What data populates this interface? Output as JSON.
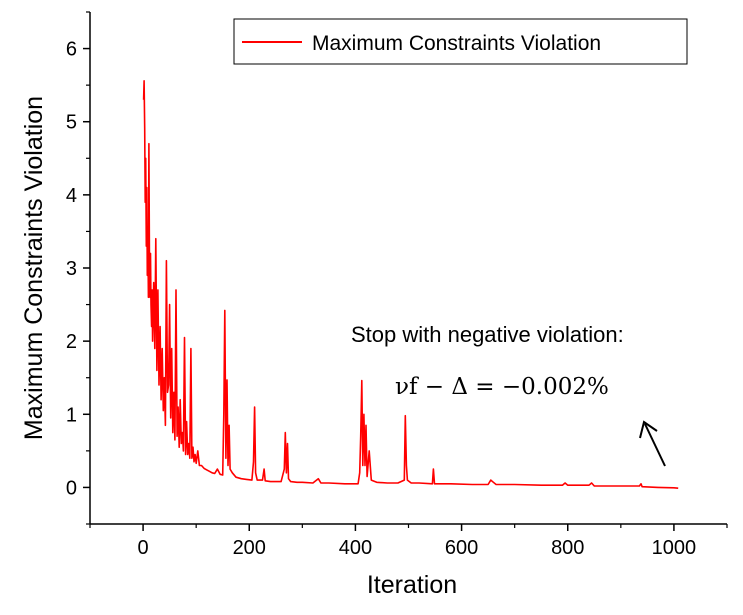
{
  "chart_data": {
    "type": "line",
    "title": "",
    "xlabel": "Iteration",
    "ylabel": "Maximum Constraints Violation",
    "xlim": [
      -100,
      1100
    ],
    "ylim": [
      -0.5,
      6.5
    ],
    "xticks": [
      0,
      200,
      400,
      600,
      800,
      1000
    ],
    "yticks": [
      0,
      1,
      2,
      3,
      4,
      5,
      6
    ],
    "grid": false,
    "legend_position": "top-right",
    "series": [
      {
        "name": "Maximum Constraints Violation",
        "color": "#ff0000",
        "points": [
          [
            1,
            5.3
          ],
          [
            2,
            5.56
          ],
          [
            3,
            4.9
          ],
          [
            4,
            3.9
          ],
          [
            5,
            4.5
          ],
          [
            6,
            3.3
          ],
          [
            7,
            4.1
          ],
          [
            8,
            2.9
          ],
          [
            9,
            3.4
          ],
          [
            10,
            2.6
          ],
          [
            11,
            4.7
          ],
          [
            12,
            3.0
          ],
          [
            13,
            2.6
          ],
          [
            14,
            3.2
          ],
          [
            15,
            2.5
          ],
          [
            16,
            2.2
          ],
          [
            17,
            2.7
          ],
          [
            18,
            2.0
          ],
          [
            20,
            2.8
          ],
          [
            22,
            1.9
          ],
          [
            24,
            3.4
          ],
          [
            26,
            1.6
          ],
          [
            28,
            2.7
          ],
          [
            30,
            1.4
          ],
          [
            32,
            2.2
          ],
          [
            34,
            1.2
          ],
          [
            36,
            1.9
          ],
          [
            38,
            1.05
          ],
          [
            40,
            1.5
          ],
          [
            42,
            0.85
          ],
          [
            44,
            3.1
          ],
          [
            46,
            1.3
          ],
          [
            48,
            1.4
          ],
          [
            50,
            2.5
          ],
          [
            52,
            0.95
          ],
          [
            54,
            1.9
          ],
          [
            56,
            0.75
          ],
          [
            58,
            1.3
          ],
          [
            60,
            0.65
          ],
          [
            62,
            2.7
          ],
          [
            64,
            0.7
          ],
          [
            66,
            1.1
          ],
          [
            68,
            0.55
          ],
          [
            70,
            1.2
          ],
          [
            72,
            0.6
          ],
          [
            74,
            0.75
          ],
          [
            76,
            0.5
          ],
          [
            78,
            2.05
          ],
          [
            80,
            0.45
          ],
          [
            82,
            0.9
          ],
          [
            84,
            0.45
          ],
          [
            86,
            0.6
          ],
          [
            88,
            0.4
          ],
          [
            90,
            1.9
          ],
          [
            92,
            0.4
          ],
          [
            94,
            0.55
          ],
          [
            96,
            0.35
          ],
          [
            98,
            0.45
          ],
          [
            100,
            0.33
          ],
          [
            103,
            0.5
          ],
          [
            106,
            0.3
          ],
          [
            110,
            0.3
          ],
          [
            115,
            0.26
          ],
          [
            120,
            0.24
          ],
          [
            125,
            0.22
          ],
          [
            130,
            0.2
          ],
          [
            135,
            0.19
          ],
          [
            140,
            0.25
          ],
          [
            145,
            0.18
          ],
          [
            150,
            0.17
          ],
          [
            152,
            1.0
          ],
          [
            154,
            2.42
          ],
          [
            156,
            0.4
          ],
          [
            158,
            1.47
          ],
          [
            160,
            0.3
          ],
          [
            162,
            0.85
          ],
          [
            164,
            0.25
          ],
          [
            168,
            0.2
          ],
          [
            175,
            0.14
          ],
          [
            185,
            0.12
          ],
          [
            195,
            0.11
          ],
          [
            205,
            0.1
          ],
          [
            208,
            0.35
          ],
          [
            210,
            1.1
          ],
          [
            212,
            0.2
          ],
          [
            215,
            0.1
          ],
          [
            225,
            0.1
          ],
          [
            228,
            0.25
          ],
          [
            230,
            0.09
          ],
          [
            240,
            0.08
          ],
          [
            250,
            0.08
          ],
          [
            260,
            0.08
          ],
          [
            266,
            0.25
          ],
          [
            268,
            0.75
          ],
          [
            270,
            0.2
          ],
          [
            272,
            0.6
          ],
          [
            274,
            0.12
          ],
          [
            278,
            0.08
          ],
          [
            290,
            0.07
          ],
          [
            300,
            0.07
          ],
          [
            320,
            0.06
          ],
          [
            330,
            0.12
          ],
          [
            335,
            0.06
          ],
          [
            350,
            0.06
          ],
          [
            380,
            0.05
          ],
          [
            405,
            0.05
          ],
          [
            408,
            0.2
          ],
          [
            410,
            0.7
          ],
          [
            412,
            1.46
          ],
          [
            414,
            0.3
          ],
          [
            416,
            1.0
          ],
          [
            418,
            0.3
          ],
          [
            420,
            0.85
          ],
          [
            422,
            0.15
          ],
          [
            426,
            0.5
          ],
          [
            430,
            0.1
          ],
          [
            440,
            0.07
          ],
          [
            460,
            0.06
          ],
          [
            480,
            0.06
          ],
          [
            492,
            0.1
          ],
          [
            494,
            0.98
          ],
          [
            496,
            0.3
          ],
          [
            498,
            0.1
          ],
          [
            505,
            0.06
          ],
          [
            520,
            0.06
          ],
          [
            545,
            0.05
          ],
          [
            547,
            0.25
          ],
          [
            549,
            0.05
          ],
          [
            580,
            0.05
          ],
          [
            620,
            0.04
          ],
          [
            650,
            0.04
          ],
          [
            655,
            0.1
          ],
          [
            660,
            0.07
          ],
          [
            665,
            0.04
          ],
          [
            700,
            0.04
          ],
          [
            750,
            0.03
          ],
          [
            790,
            0.03
          ],
          [
            795,
            0.06
          ],
          [
            800,
            0.03
          ],
          [
            840,
            0.03
          ],
          [
            845,
            0.06
          ],
          [
            850,
            0.02
          ],
          [
            900,
            0.02
          ],
          [
            935,
            0.02
          ],
          [
            938,
            0.05
          ],
          [
            940,
            0.01
          ],
          [
            970,
            0.0
          ],
          [
            1000,
            -0.005
          ],
          [
            1008,
            -0.01
          ]
        ]
      }
    ],
    "annotations": [
      {
        "text": "Stop with negative violation:",
        "formula": "νf − Δ = −0.002%"
      }
    ]
  }
}
